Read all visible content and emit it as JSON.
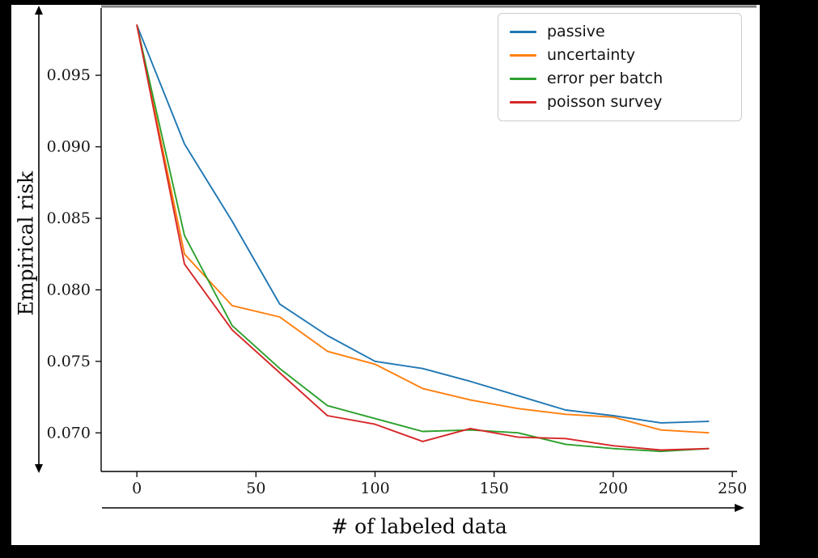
{
  "figure": {
    "background": "#000000",
    "plot_background": "#ffffff",
    "top_spine_color": "#7f7f7f",
    "axis_color": "#000000",
    "text_color": "#141414"
  },
  "chart_data": {
    "type": "line",
    "title": "",
    "xlabel": "# of labeled data",
    "ylabel": "Empirical risk",
    "x": [
      0,
      20,
      40,
      60,
      80,
      100,
      120,
      140,
      160,
      180,
      200,
      220,
      240
    ],
    "series": [
      {
        "name": "passive",
        "color": "#1f77b4",
        "values": [
          0.0985,
          0.0902,
          0.0848,
          0.079,
          0.0768,
          0.075,
          0.0745,
          0.0736,
          0.0726,
          0.0716,
          0.0712,
          0.0707,
          0.0708
        ]
      },
      {
        "name": "uncertainty",
        "color": "#ff7f0e",
        "values": [
          0.0985,
          0.0825,
          0.0789,
          0.0781,
          0.0757,
          0.0748,
          0.0731,
          0.0723,
          0.0717,
          0.0713,
          0.0711,
          0.0702,
          0.07
        ]
      },
      {
        "name": "error per batch",
        "color": "#2ca02c",
        "values": [
          0.0985,
          0.0838,
          0.0775,
          0.0745,
          0.0719,
          0.071,
          0.0701,
          0.0702,
          0.07,
          0.0692,
          0.0689,
          0.0687,
          0.0689
        ]
      },
      {
        "name": "poisson survey",
        "color": "#d62728",
        "values": [
          0.0985,
          0.0818,
          0.0772,
          0.0742,
          0.0712,
          0.0706,
          0.0694,
          0.0703,
          0.0697,
          0.0696,
          0.0691,
          0.0688,
          0.0689
        ]
      }
    ],
    "xlim": [
      -15,
      252
    ],
    "ylim": [
      0.0673,
      0.0997
    ],
    "xticks": [
      0,
      50,
      100,
      150,
      200,
      250
    ],
    "xtick_labels": [
      "0",
      "50",
      "100",
      "150",
      "200",
      "250"
    ],
    "yticks": [
      0.07,
      0.075,
      0.08,
      0.085,
      0.09,
      0.095
    ],
    "ytick_labels": [
      "0.070",
      "0.075",
      "0.080",
      "0.085",
      "0.090",
      "0.095"
    ],
    "grid": false,
    "legend_position": "upper right"
  }
}
